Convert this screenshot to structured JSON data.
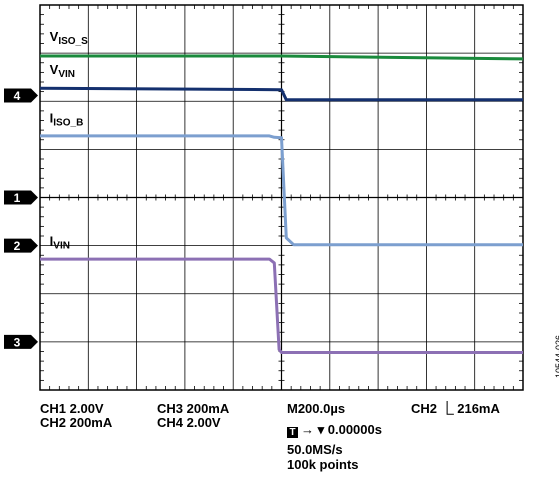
{
  "chart_data": {
    "type": "line",
    "x_unit": "µs",
    "xlim": [
      -1000,
      1000
    ],
    "y_unit": "div",
    "ylim": [
      -4,
      4
    ],
    "grid": true,
    "series": [
      {
        "name": "V_ISO_S",
        "label_main": "V",
        "label_sub": "ISO_S",
        "color": "#1a8a3c",
        "points": [
          [
            -1000,
            2.94
          ],
          [
            0,
            2.94
          ],
          [
            1000,
            2.88
          ]
        ]
      },
      {
        "name": "V_VIN",
        "label_main": "V",
        "label_sub": "VIN",
        "color": "#14306e",
        "points": [
          [
            -1000,
            2.27
          ],
          [
            0,
            2.24
          ],
          [
            20,
            2.03
          ],
          [
            1000,
            2.03
          ]
        ]
      },
      {
        "name": "I_ISO_B",
        "label_main": "I",
        "label_sub": "ISO_B",
        "color": "#7c9fcf",
        "points": [
          [
            -1000,
            1.28
          ],
          [
            -50,
            1.28
          ],
          [
            -30,
            1.25
          ],
          [
            0,
            1.24
          ],
          [
            20,
            -0.84
          ],
          [
            50,
            -0.98
          ],
          [
            1000,
            -0.98
          ]
        ]
      },
      {
        "name": "I_VIN",
        "label_main": "I",
        "label_sub": "VIN",
        "color": "#8c70b4",
        "points": [
          [
            -1000,
            -1.28
          ],
          [
            -50,
            -1.28
          ],
          [
            -30,
            -1.36
          ],
          [
            -10,
            -3.16
          ],
          [
            0,
            -3.22
          ],
          [
            1000,
            -3.22
          ]
        ]
      }
    ],
    "channel_markers": [
      {
        "label": "4",
        "y": 2.12
      },
      {
        "label": "1",
        "y": 0.0
      },
      {
        "label": "2",
        "y": -1.0
      },
      {
        "label": "3",
        "y": -3.0
      }
    ]
  },
  "footer": {
    "ch1": "CH1  2.00V",
    "ch2": "CH2  200mA",
    "ch3": "CH3  200mA",
    "ch4": "CH4  2.00V",
    "timebase": "M200.0µs",
    "trigger_pos_box": "T",
    "trigger_pos": "→ ▾ 0.00000s",
    "sample_rate": "50.0MS/s",
    "record_length": "100k points",
    "trigger": "CH2 ⎿ 216mA"
  },
  "figure_id": "10544-026"
}
